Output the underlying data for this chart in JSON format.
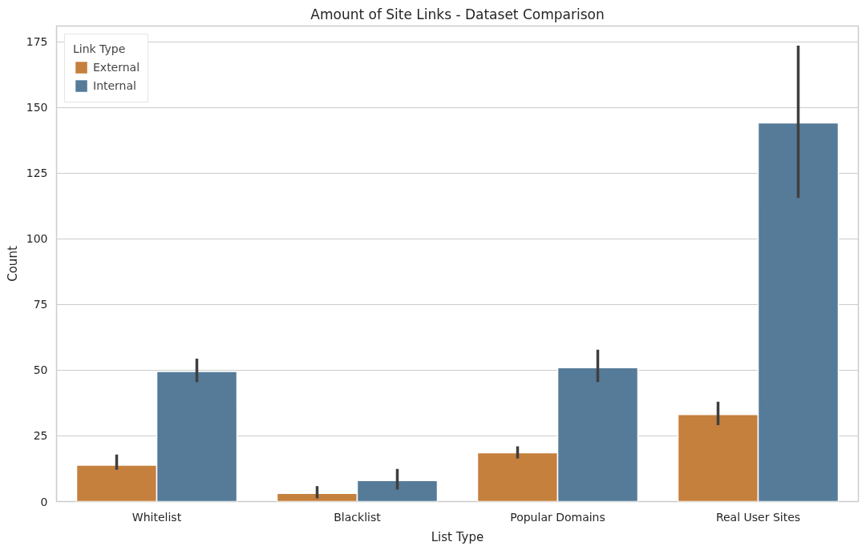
{
  "chart_data": {
    "type": "bar",
    "title": "Amount of Site Links - Dataset Comparison",
    "xlabel": "List Type",
    "ylabel": "Count",
    "legend_title": "Link Type",
    "categories": [
      "Whitelist",
      "Blacklist",
      "Popular Domains",
      "Real User Sites"
    ],
    "series": [
      {
        "name": "External",
        "color": "#c5803d",
        "values": [
          13.9,
          3.1,
          18.6,
          33.1
        ],
        "errors": [
          [
            12.1,
            17.9
          ],
          [
            1.2,
            5.9
          ],
          [
            16.4,
            21.0
          ],
          [
            29.1,
            38.0
          ]
        ]
      },
      {
        "name": "Internal",
        "color": "#557b99",
        "values": [
          49.5,
          8.0,
          51.0,
          144.1
        ],
        "errors": [
          [
            45.5,
            54.4
          ],
          [
            4.6,
            12.4
          ],
          [
            45.5,
            57.8
          ],
          [
            115.6,
            173.5
          ]
        ]
      }
    ],
    "ylim": [
      0,
      181
    ],
    "yticks": [
      0,
      25,
      50,
      75,
      100,
      125,
      150,
      175
    ],
    "grid": "y",
    "legend": "top left"
  }
}
